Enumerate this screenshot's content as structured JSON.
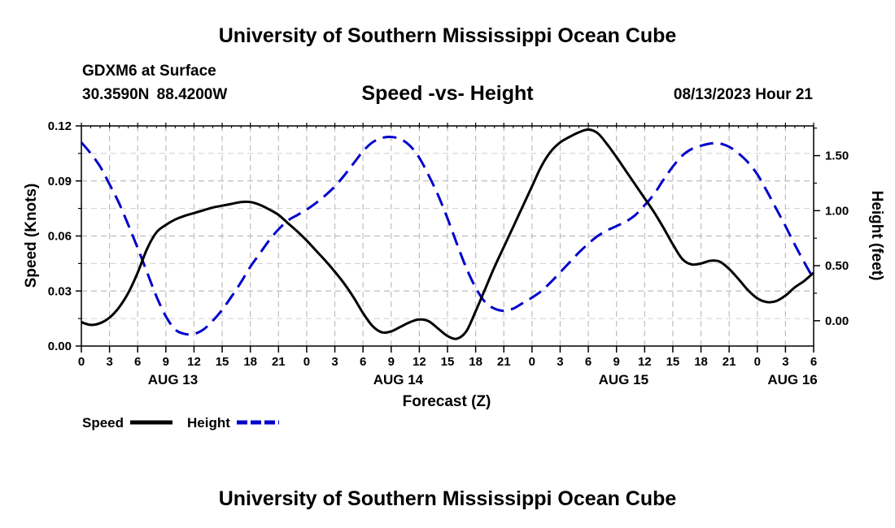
{
  "header": {
    "title": "University of Southern Mississippi Ocean Cube",
    "station": "GDXM6 at Surface",
    "coords": "30.3590N  88.4200W",
    "subtitle": "Speed -vs- Height",
    "datetime": "08/13/2023 Hour 21"
  },
  "footer": {
    "title": "University of Southern Mississippi Ocean Cube"
  },
  "chart_data": {
    "type": "line",
    "title": "Speed -vs- Height",
    "xlabel": "Forecast (Z)",
    "ylabel_left": "Speed (Knots)",
    "ylabel_right": "Height (feet)",
    "x_unit": "hours since 08/13/2023 00Z",
    "xlim": [
      0,
      78
    ],
    "ylim_left": [
      0,
      0.12
    ],
    "ylim_right": [
      -0.23,
      1.77
    ],
    "x_ticks": [
      {
        "x": 0,
        "label": "0"
      },
      {
        "x": 3,
        "label": "3"
      },
      {
        "x": 6,
        "label": "6"
      },
      {
        "x": 9,
        "label": "9"
      },
      {
        "x": 12,
        "label": "12"
      },
      {
        "x": 15,
        "label": "15"
      },
      {
        "x": 18,
        "label": "18"
      },
      {
        "x": 21,
        "label": "21"
      },
      {
        "x": 24,
        "label": "0"
      },
      {
        "x": 27,
        "label": "3"
      },
      {
        "x": 30,
        "label": "6"
      },
      {
        "x": 33,
        "label": "9"
      },
      {
        "x": 36,
        "label": "12"
      },
      {
        "x": 39,
        "label": "15"
      },
      {
        "x": 42,
        "label": "18"
      },
      {
        "x": 45,
        "label": "21"
      },
      {
        "x": 48,
        "label": "0"
      },
      {
        "x": 51,
        "label": "3"
      },
      {
        "x": 54,
        "label": "6"
      },
      {
        "x": 57,
        "label": "9"
      },
      {
        "x": 60,
        "label": "12"
      },
      {
        "x": 63,
        "label": "15"
      },
      {
        "x": 66,
        "label": "18"
      },
      {
        "x": 69,
        "label": "21"
      },
      {
        "x": 72,
        "label": "0"
      },
      {
        "x": 75,
        "label": "3"
      },
      {
        "x": 78,
        "label": "6"
      }
    ],
    "date_labels": [
      {
        "x": 9.75,
        "label": "AUG 13"
      },
      {
        "x": 33.75,
        "label": "AUG 14"
      },
      {
        "x": 57.75,
        "label": "AUG 15"
      },
      {
        "x": 75.75,
        "label": "AUG 16"
      }
    ],
    "y_ticks_left": [
      {
        "v": 0,
        "label": "0.00"
      },
      {
        "v": 0.03,
        "label": "0.03"
      },
      {
        "v": 0.06,
        "label": "0.06"
      },
      {
        "v": 0.09,
        "label": "0.09"
      },
      {
        "v": 0.12,
        "label": "0.12"
      }
    ],
    "y_ticks_right": [
      {
        "v": 0,
        "label": "0.00"
      },
      {
        "v": 0.5,
        "label": "0.50"
      },
      {
        "v": 1.0,
        "label": "1.00"
      },
      {
        "v": 1.5,
        "label": "1.50"
      }
    ],
    "series": [
      {
        "name": "Speed",
        "axis": "left",
        "color": "#000000",
        "dash": false,
        "points": [
          [
            0,
            0.013
          ],
          [
            1,
            0.0115
          ],
          [
            2,
            0.0125
          ],
          [
            3,
            0.0155
          ],
          [
            4,
            0.021
          ],
          [
            5,
            0.029
          ],
          [
            6,
            0.04
          ],
          [
            7,
            0.053
          ],
          [
            8,
            0.062
          ],
          [
            9,
            0.066
          ],
          [
            10,
            0.069
          ],
          [
            11,
            0.071
          ],
          [
            12,
            0.0725
          ],
          [
            13,
            0.074
          ],
          [
            14,
            0.0755
          ],
          [
            15,
            0.0765
          ],
          [
            16,
            0.0775
          ],
          [
            17,
            0.0785
          ],
          [
            18,
            0.0785
          ],
          [
            19,
            0.077
          ],
          [
            20,
            0.0745
          ],
          [
            21,
            0.0715
          ],
          [
            22,
            0.067
          ],
          [
            23,
            0.0625
          ],
          [
            24,
            0.0575
          ],
          [
            25,
            0.052
          ],
          [
            26,
            0.0465
          ],
          [
            27,
            0.0405
          ],
          [
            28,
            0.034
          ],
          [
            29,
            0.0265
          ],
          [
            30,
            0.018
          ],
          [
            31,
            0.011
          ],
          [
            32,
            0.0075
          ],
          [
            33,
            0.008
          ],
          [
            34,
            0.0105
          ],
          [
            35,
            0.013
          ],
          [
            36,
            0.0145
          ],
          [
            37,
            0.0135
          ],
          [
            38,
            0.0095
          ],
          [
            39,
            0.0055
          ],
          [
            40,
            0.004
          ],
          [
            41,
            0.008
          ],
          [
            42,
            0.019
          ],
          [
            43,
            0.031
          ],
          [
            44,
            0.043
          ],
          [
            45,
            0.054
          ],
          [
            46,
            0.065
          ],
          [
            47,
            0.076
          ],
          [
            48,
            0.087
          ],
          [
            49,
            0.098
          ],
          [
            50,
            0.106
          ],
          [
            51,
            0.111
          ],
          [
            52,
            0.114
          ],
          [
            53,
            0.1165
          ],
          [
            54,
            0.118
          ],
          [
            55,
            0.116
          ],
          [
            56,
            0.11
          ],
          [
            57,
            0.103
          ],
          [
            58,
            0.0955
          ],
          [
            59,
            0.088
          ],
          [
            60,
            0.0805
          ],
          [
            61,
            0.073
          ],
          [
            62,
            0.0645
          ],
          [
            63,
            0.0555
          ],
          [
            64,
            0.0475
          ],
          [
            65,
            0.0445
          ],
          [
            66,
            0.045
          ],
          [
            67,
            0.0465
          ],
          [
            68,
            0.046
          ],
          [
            69,
            0.042
          ],
          [
            70,
            0.0365
          ],
          [
            71,
            0.0305
          ],
          [
            72,
            0.026
          ],
          [
            73,
            0.024
          ],
          [
            74,
            0.0245
          ],
          [
            75,
            0.0275
          ],
          [
            76,
            0.032
          ],
          [
            77,
            0.0355
          ],
          [
            78,
            0.04
          ]
        ]
      },
      {
        "name": "Height",
        "axis": "right",
        "color": "#0000cc",
        "dash": true,
        "points": [
          [
            0,
            1.62
          ],
          [
            1,
            1.52
          ],
          [
            2,
            1.4
          ],
          [
            3,
            1.24
          ],
          [
            4,
            1.07
          ],
          [
            5,
            0.87
          ],
          [
            6,
            0.66
          ],
          [
            7,
            0.44
          ],
          [
            8,
            0.22
          ],
          [
            9,
            0.04
          ],
          [
            10,
            -0.08
          ],
          [
            11,
            -0.12
          ],
          [
            12,
            -0.12
          ],
          [
            13,
            -0.08
          ],
          [
            14,
            0.0
          ],
          [
            15,
            0.1
          ],
          [
            16,
            0.22
          ],
          [
            17,
            0.35
          ],
          [
            18,
            0.49
          ],
          [
            19,
            0.61
          ],
          [
            20,
            0.73
          ],
          [
            21,
            0.83
          ],
          [
            22,
            0.91
          ],
          [
            23,
            0.96
          ],
          [
            24,
            1.01
          ],
          [
            25,
            1.07
          ],
          [
            26,
            1.14
          ],
          [
            27,
            1.22
          ],
          [
            28,
            1.32
          ],
          [
            29,
            1.43
          ],
          [
            30,
            1.54
          ],
          [
            31,
            1.62
          ],
          [
            32,
            1.66
          ],
          [
            33,
            1.67
          ],
          [
            34,
            1.65
          ],
          [
            35,
            1.59
          ],
          [
            36,
            1.48
          ],
          [
            37,
            1.32
          ],
          [
            38,
            1.14
          ],
          [
            39,
            0.93
          ],
          [
            40,
            0.7
          ],
          [
            41,
            0.48
          ],
          [
            42,
            0.3
          ],
          [
            43,
            0.17
          ],
          [
            44,
            0.11
          ],
          [
            45,
            0.09
          ],
          [
            46,
            0.11
          ],
          [
            47,
            0.16
          ],
          [
            48,
            0.21
          ],
          [
            49,
            0.27
          ],
          [
            50,
            0.35
          ],
          [
            51,
            0.44
          ],
          [
            52,
            0.53
          ],
          [
            53,
            0.62
          ],
          [
            54,
            0.7
          ],
          [
            55,
            0.77
          ],
          [
            56,
            0.82
          ],
          [
            57,
            0.86
          ],
          [
            58,
            0.9
          ],
          [
            59,
            0.96
          ],
          [
            60,
            1.05
          ],
          [
            61,
            1.15
          ],
          [
            62,
            1.28
          ],
          [
            63,
            1.4
          ],
          [
            64,
            1.5
          ],
          [
            65,
            1.56
          ],
          [
            66,
            1.59
          ],
          [
            67,
            1.61
          ],
          [
            68,
            1.61
          ],
          [
            69,
            1.58
          ],
          [
            70,
            1.52
          ],
          [
            71,
            1.44
          ],
          [
            72,
            1.33
          ],
          [
            73,
            1.18
          ],
          [
            74,
            1.02
          ],
          [
            75,
            0.86
          ],
          [
            76,
            0.69
          ],
          [
            77,
            0.53
          ],
          [
            78,
            0.38
          ]
        ]
      }
    ],
    "legend": [
      {
        "label": "Speed",
        "color": "#000000",
        "dash": false
      },
      {
        "label": "Height",
        "color": "#0000cc",
        "dash": true
      }
    ],
    "legend_placement": "bottom-left",
    "grid": true
  }
}
